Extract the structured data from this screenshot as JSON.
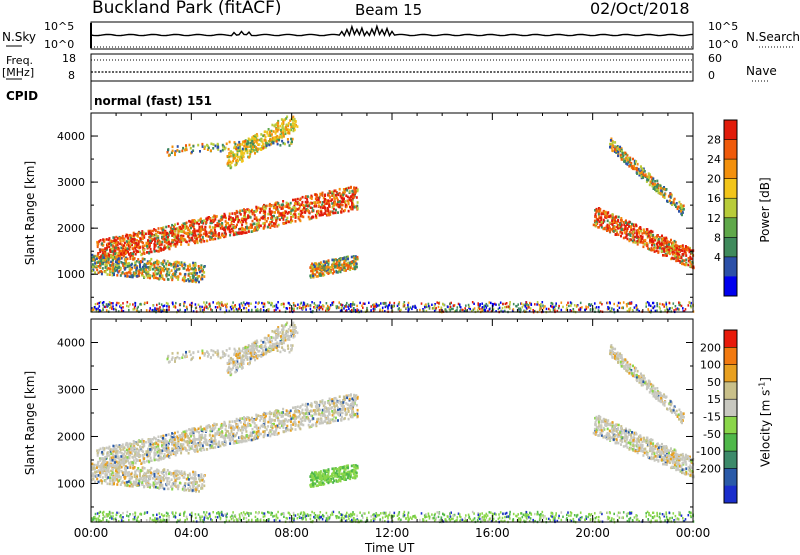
{
  "header": {
    "station": "Buckland Park (fitACF)",
    "beam": "Beam 15",
    "date": "02/Oct/2018"
  },
  "top_panels": {
    "nsky_label": "N.Sky",
    "nsky_ticks": [
      "10^5",
      "10^0"
    ],
    "nsearch_label": "N.Search",
    "nsearch_ticks": [
      "10^5",
      "10^0"
    ],
    "freq_label": "Freq.",
    "freq_unit": "[MHz]",
    "freq_ticks": [
      "18",
      "8"
    ],
    "nave_label": "Nave",
    "nave_ticks": [
      "60",
      "0"
    ],
    "cpid_label": "CPID",
    "cpid_value": "normal (fast) 151"
  },
  "chart_data": [
    {
      "type": "heatmap",
      "name": "power",
      "ylabel": "Slant Range [km]",
      "yticks": [
        "4000",
        "3000",
        "2000",
        "1000"
      ],
      "ylim": [
        180,
        4500
      ],
      "xlim_hours": [
        0,
        24
      ],
      "colorbar": {
        "label": "Power [dB]",
        "ticks": [
          "28",
          "24",
          "20",
          "16",
          "12",
          "8",
          "4"
        ],
        "colors": [
          "#0000ee",
          "#2c50a8",
          "#3f8a5c",
          "#5fa84a",
          "#b8cc3a",
          "#f2c51a",
          "#f3900c",
          "#ef5a0a",
          "#e11b0a"
        ]
      }
    },
    {
      "type": "heatmap",
      "name": "velocity",
      "ylabel": "Slant Range [km]",
      "yticks": [
        "4000",
        "3000",
        "2000",
        "1000"
      ],
      "ylim": [
        180,
        4500
      ],
      "xlim_hours": [
        0,
        24
      ],
      "colorbar": {
        "label": "Velocity [m s",
        "label_sup": "-1",
        "label_end": "]",
        "ticks": [
          "200",
          "100",
          "50",
          "15",
          "-15",
          "-50",
          "-100",
          "-200"
        ],
        "colors": [
          "#1a2ecc",
          "#2a5aa8",
          "#3c8a6a",
          "#4fb84a",
          "#8ad64a",
          "#c8c8c0",
          "#c9c08a",
          "#e8a020",
          "#f27a10",
          "#e81a0a"
        ]
      }
    }
  ],
  "x_axis": {
    "ticks": [
      "00:00",
      "04:00",
      "08:00",
      "12:00",
      "16:00",
      "20:00",
      "00:00"
    ],
    "label": "Time UT"
  }
}
